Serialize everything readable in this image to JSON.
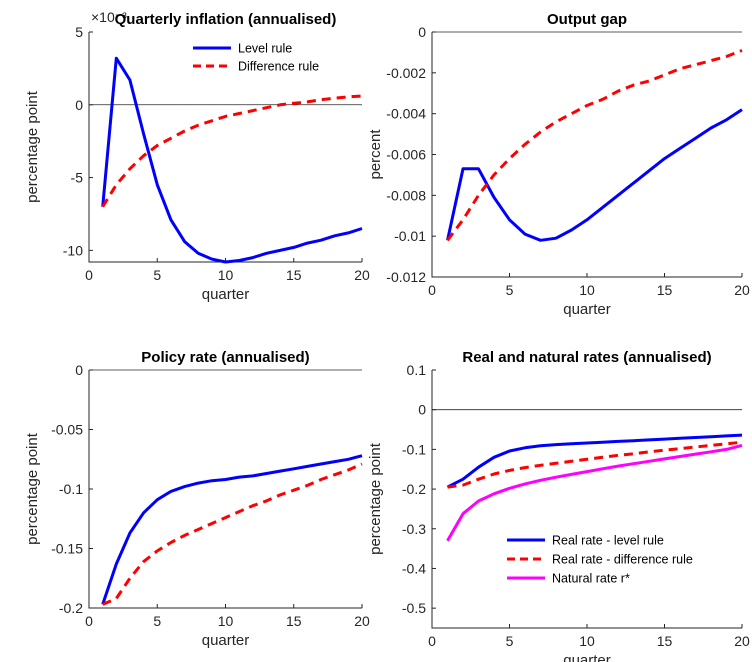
{
  "colors": {
    "level": "#0000ff",
    "difference": "#ff0000",
    "natural": "#ff00ff",
    "axis": "#262626"
  },
  "chart_data": [
    {
      "type": "line",
      "title": "Quarterly inflation (annualised)",
      "xlabel": "quarter",
      "ylabel": "percentage point",
      "exponent_label": "×10⁻³",
      "xlim": [
        0,
        20
      ],
      "ylim": [
        -10.8,
        5
      ],
      "xticks": [
        0,
        5,
        10,
        15,
        20
      ],
      "yticks": [
        -10,
        -5,
        0,
        5
      ],
      "zero_line": true,
      "legend_position": "top-right",
      "x": [
        1,
        2,
        3,
        4,
        5,
        6,
        7,
        8,
        9,
        10,
        11,
        12,
        13,
        14,
        15,
        16,
        17,
        18,
        19,
        20
      ],
      "series": [
        {
          "name": "Level rule",
          "style": "solid",
          "color": "#0000ff",
          "values": [
            -7.0,
            3.2,
            1.7,
            -2.0,
            -5.5,
            -7.9,
            -9.4,
            -10.2,
            -10.6,
            -10.8,
            -10.7,
            -10.5,
            -10.2,
            -10.0,
            -9.8,
            -9.5,
            -9.3,
            -9.0,
            -8.8,
            -8.5
          ]
        },
        {
          "name": "Difference rule",
          "style": "dashed",
          "color": "#ff0000",
          "values": [
            -7.0,
            -5.5,
            -4.4,
            -3.5,
            -2.8,
            -2.3,
            -1.8,
            -1.4,
            -1.1,
            -0.8,
            -0.6,
            -0.4,
            -0.2,
            0.0,
            0.1,
            0.2,
            0.35,
            0.45,
            0.55,
            0.6
          ]
        }
      ]
    },
    {
      "type": "line",
      "title": "Output gap",
      "xlabel": "quarter",
      "ylabel": "percent",
      "xlim": [
        0,
        20
      ],
      "ylim": [
        -0.012,
        0
      ],
      "xticks": [
        0,
        5,
        10,
        15,
        20
      ],
      "yticks": [
        -0.012,
        -0.01,
        -0.008,
        -0.006,
        -0.004,
        -0.002,
        0
      ],
      "zero_line": true,
      "x": [
        1,
        2,
        3,
        4,
        5,
        6,
        7,
        8,
        9,
        10,
        11,
        12,
        13,
        14,
        15,
        16,
        17,
        18,
        19,
        20
      ],
      "series": [
        {
          "name": "Level rule",
          "style": "solid",
          "color": "#0000ff",
          "values": [
            -0.0102,
            -0.0067,
            -0.0067,
            -0.0081,
            -0.0092,
            -0.0099,
            -0.0102,
            -0.0101,
            -0.0097,
            -0.0092,
            -0.0086,
            -0.008,
            -0.0074,
            -0.0068,
            -0.0062,
            -0.0057,
            -0.0052,
            -0.0047,
            -0.0043,
            -0.0038
          ]
        },
        {
          "name": "Difference rule",
          "style": "dashed",
          "color": "#ff0000",
          "values": [
            -0.0102,
            -0.0092,
            -0.008,
            -0.007,
            -0.0062,
            -0.0055,
            -0.0049,
            -0.0044,
            -0.004,
            -0.0036,
            -0.0033,
            -0.0029,
            -0.0026,
            -0.0024,
            -0.0021,
            -0.0018,
            -0.0016,
            -0.0014,
            -0.0012,
            -0.0009
          ]
        }
      ]
    },
    {
      "type": "line",
      "title": "Policy rate (annualised)",
      "xlabel": "quarter",
      "ylabel": "percentage point",
      "xlim": [
        0,
        20
      ],
      "ylim": [
        -0.2,
        0
      ],
      "xticks": [
        0,
        5,
        10,
        15,
        20
      ],
      "yticks": [
        -0.2,
        -0.15,
        -0.1,
        -0.05,
        0
      ],
      "zero_line": true,
      "x": [
        1,
        2,
        3,
        4,
        5,
        6,
        7,
        8,
        9,
        10,
        11,
        12,
        13,
        14,
        15,
        16,
        17,
        18,
        19,
        20
      ],
      "series": [
        {
          "name": "Level rule",
          "style": "solid",
          "color": "#0000ff",
          "values": [
            -0.197,
            -0.163,
            -0.137,
            -0.12,
            -0.109,
            -0.102,
            -0.098,
            -0.095,
            -0.093,
            -0.092,
            -0.09,
            -0.089,
            -0.087,
            -0.085,
            -0.083,
            -0.081,
            -0.079,
            -0.077,
            -0.075,
            -0.072
          ]
        },
        {
          "name": "Difference rule",
          "style": "dashed",
          "color": "#ff0000",
          "values": [
            -0.197,
            -0.192,
            -0.175,
            -0.161,
            -0.152,
            -0.145,
            -0.139,
            -0.134,
            -0.129,
            -0.124,
            -0.119,
            -0.114,
            -0.11,
            -0.105,
            -0.101,
            -0.097,
            -0.092,
            -0.088,
            -0.084,
            -0.079
          ]
        }
      ]
    },
    {
      "type": "line",
      "title": "Real and natural rates (annualised)",
      "xlabel": "quarter",
      "ylabel": "percentage point",
      "xlim": [
        0,
        20
      ],
      "ylim": [
        -0.55,
        0.1
      ],
      "xticks": [
        0,
        5,
        10,
        15,
        20
      ],
      "yticks": [
        -0.5,
        -0.4,
        -0.3,
        -0.2,
        -0.1,
        0,
        0.1
      ],
      "zero_line": true,
      "legend_position": "bottom-right",
      "x": [
        1,
        2,
        3,
        4,
        5,
        6,
        7,
        8,
        9,
        10,
        11,
        12,
        13,
        14,
        15,
        16,
        17,
        18,
        19,
        20
      ],
      "series": [
        {
          "name": "Real rate - level rule",
          "style": "solid",
          "color": "#0000ff",
          "values": [
            -0.195,
            -0.175,
            -0.145,
            -0.12,
            -0.104,
            -0.096,
            -0.091,
            -0.088,
            -0.086,
            -0.084,
            -0.082,
            -0.08,
            -0.078,
            -0.076,
            -0.074,
            -0.072,
            -0.07,
            -0.068,
            -0.066,
            -0.064
          ]
        },
        {
          "name": "Real rate - difference rule",
          "style": "dashed",
          "color": "#ff0000",
          "values": [
            -0.195,
            -0.19,
            -0.175,
            -0.162,
            -0.153,
            -0.146,
            -0.14,
            -0.135,
            -0.13,
            -0.125,
            -0.12,
            -0.115,
            -0.111,
            -0.106,
            -0.102,
            -0.098,
            -0.094,
            -0.09,
            -0.086,
            -0.082
          ]
        },
        {
          "name": "Natural rate r*",
          "style": "solid",
          "color": "#ff00ff",
          "values": [
            -0.33,
            -0.262,
            -0.23,
            -0.212,
            -0.198,
            -0.187,
            -0.178,
            -0.17,
            -0.163,
            -0.156,
            -0.149,
            -0.142,
            -0.136,
            -0.13,
            -0.124,
            -0.118,
            -0.112,
            -0.106,
            -0.1,
            -0.09
          ]
        }
      ]
    }
  ]
}
